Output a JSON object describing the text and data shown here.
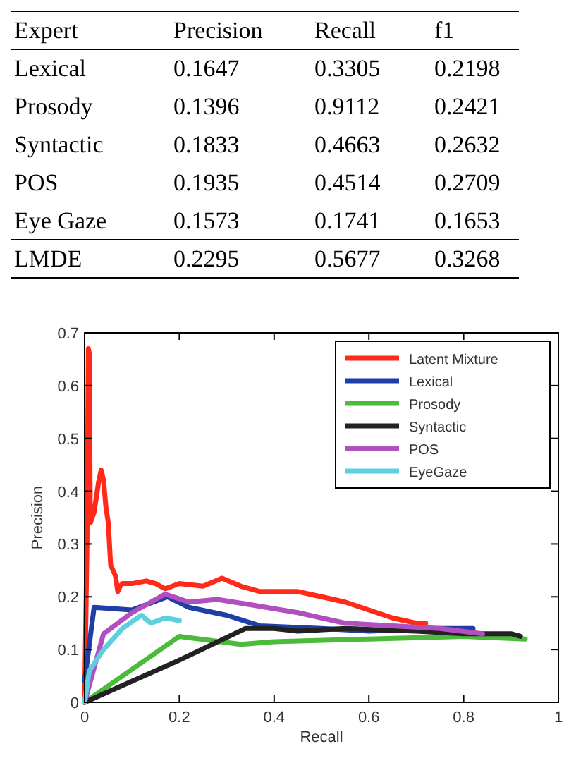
{
  "chart_data": [
    {
      "type": "heatmap",
      "ylabel": "Expert",
      "data_labels": true,
      "categories": [
        "Precision",
        "Recall",
        "f1"
      ],
      "y_categories": [
        "Lexical",
        "Prosody",
        "Syntactic",
        "POS",
        "Eye Gaze",
        "LMDE"
      ],
      "cells": [
        [
          0.1647,
          0.3305,
          0.2198
        ],
        [
          0.1396,
          0.9112,
          0.2421
        ],
        [
          0.1833,
          0.4663,
          0.2632
        ],
        [
          0.1935,
          0.4514,
          0.2709
        ],
        [
          0.1573,
          0.1741,
          0.1653
        ],
        [
          0.2295,
          0.5677,
          0.3268
        ]
      ]
    },
    {
      "type": "line",
      "xlabel": "Recall",
      "ylabel": "Precision",
      "xlim": [
        0,
        1
      ],
      "ylim": [
        0,
        0.7
      ],
      "xticks": [
        0,
        0.2,
        0.4,
        0.6,
        0.8,
        1
      ],
      "yticks": [
        0,
        0.1,
        0.2,
        0.3,
        0.4,
        0.5,
        0.6,
        0.7
      ],
      "legend": "top right",
      "grid": false,
      "line_style": "solid",
      "series": [
        {
          "name": "Latent Mixture",
          "color": "#ff2a1a",
          "x": [
            0,
            0.005,
            0.008,
            0.01,
            0.012,
            0.02,
            0.03,
            0.035,
            0.04,
            0.045,
            0.05,
            0.055,
            0.06,
            0.065,
            0.07,
            0.075,
            0.08,
            0.1,
            0.13,
            0.15,
            0.17,
            0.2,
            0.25,
            0.29,
            0.33,
            0.37,
            0.4,
            0.45,
            0.5,
            0.55,
            0.6,
            0.65,
            0.7,
            0.72
          ],
          "values": [
            0,
            0.3,
            0.67,
            0.66,
            0.34,
            0.36,
            0.42,
            0.44,
            0.42,
            0.37,
            0.34,
            0.26,
            0.25,
            0.24,
            0.21,
            0.22,
            0.225,
            0.225,
            0.23,
            0.225,
            0.215,
            0.225,
            0.22,
            0.235,
            0.22,
            0.21,
            0.21,
            0.21,
            0.2,
            0.19,
            0.175,
            0.16,
            0.15,
            0.15
          ]
        },
        {
          "name": "Lexical",
          "color": "#1f3fa6",
          "x": [
            0,
            0.02,
            0.1,
            0.175,
            0.22,
            0.3,
            0.37,
            0.5,
            0.6,
            0.75,
            0.82
          ],
          "values": [
            0.04,
            0.18,
            0.175,
            0.2,
            0.18,
            0.165,
            0.145,
            0.14,
            0.135,
            0.14,
            0.14
          ]
        },
        {
          "name": "Prosody",
          "color": "#4cbb3b",
          "x": [
            0,
            0.2,
            0.33,
            0.4,
            0.6,
            0.8,
            0.93
          ],
          "values": [
            0,
            0.125,
            0.11,
            0.115,
            0.12,
            0.125,
            0.12
          ]
        },
        {
          "name": "Syntactic",
          "color": "#222222",
          "x": [
            0,
            0.2,
            0.34,
            0.4,
            0.45,
            0.55,
            0.7,
            0.8,
            0.9,
            0.92
          ],
          "values": [
            0,
            0.08,
            0.14,
            0.14,
            0.135,
            0.14,
            0.135,
            0.13,
            0.13,
            0.125
          ]
        },
        {
          "name": "POS",
          "color": "#b24fc0",
          "x": [
            0,
            0.04,
            0.1,
            0.17,
            0.22,
            0.28,
            0.35,
            0.45,
            0.55,
            0.65,
            0.75,
            0.84
          ],
          "values": [
            0,
            0.13,
            0.17,
            0.205,
            0.19,
            0.195,
            0.185,
            0.17,
            0.15,
            0.145,
            0.14,
            0.13
          ]
        },
        {
          "name": "EyeGaze",
          "color": "#5fcfdf",
          "x": [
            0,
            0.01,
            0.04,
            0.08,
            0.12,
            0.14,
            0.17,
            0.2
          ],
          "values": [
            0,
            0.06,
            0.1,
            0.14,
            0.165,
            0.15,
            0.16,
            0.155
          ]
        }
      ]
    }
  ]
}
